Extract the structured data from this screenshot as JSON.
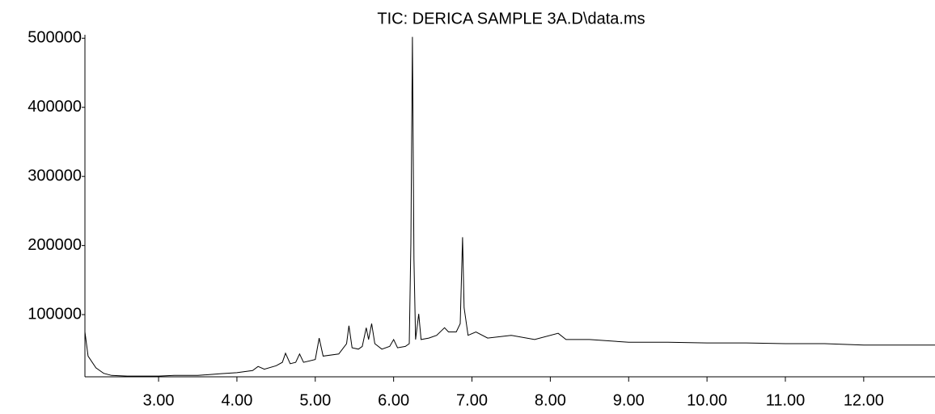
{
  "chart_data": {
    "type": "line",
    "title": "TIC: DERICA SAMPLE 3A.D\\data.ms",
    "x": [
      2.06,
      2.1,
      2.2,
      2.3,
      2.4,
      2.6,
      3.0,
      3.2,
      3.5,
      3.8,
      4.0,
      4.2,
      4.27,
      4.35,
      4.5,
      4.58,
      4.62,
      4.68,
      4.75,
      4.8,
      4.85,
      5.0,
      5.05,
      5.1,
      5.3,
      5.4,
      5.43,
      5.47,
      5.55,
      5.6,
      5.65,
      5.68,
      5.72,
      5.76,
      5.85,
      5.95,
      6.0,
      6.05,
      6.15,
      6.2,
      6.22,
      6.24,
      6.26,
      6.28,
      6.32,
      6.35,
      6.45,
      6.55,
      6.65,
      6.7,
      6.8,
      6.85,
      6.88,
      6.9,
      6.95,
      7.05,
      7.2,
      7.5,
      7.8,
      8.1,
      8.2,
      8.5,
      9.0,
      9.5,
      10.0,
      10.5,
      11.0,
      11.5,
      12.0,
      12.5,
      12.91
    ],
    "values": [
      75000,
      40000,
      23000,
      15000,
      12000,
      11000,
      11000,
      12000,
      12000,
      14600,
      16000,
      19000,
      25000,
      21000,
      26000,
      31000,
      44000,
      29000,
      31000,
      43000,
      31000,
      35000,
      66000,
      40000,
      43000,
      58000,
      84000,
      52000,
      50000,
      54000,
      81000,
      64000,
      87000,
      58000,
      50000,
      54000,
      64000,
      52000,
      54000,
      58000,
      204000,
      502000,
      180000,
      64000,
      101000,
      64000,
      66000,
      70000,
      81000,
      75000,
      75000,
      87000,
      212000,
      110000,
      70000,
      75000,
      66000,
      70000,
      64000,
      73000,
      64000,
      64000,
      60000,
      60000,
      59000,
      59000,
      58000,
      58000,
      56000,
      56000,
      56000
    ],
    "color": "#000000",
    "xlim": [
      2.06,
      12.91
    ],
    "ylim": [
      10000,
      505000
    ],
    "xticks": [
      {
        "value": 3,
        "label": "3.00"
      },
      {
        "value": 4,
        "label": "4.00"
      },
      {
        "value": 5,
        "label": "5.00"
      },
      {
        "value": 6,
        "label": "6.00"
      },
      {
        "value": 7,
        "label": "7.00"
      },
      {
        "value": 8,
        "label": "8.00"
      },
      {
        "value": 9,
        "label": "9.00"
      },
      {
        "value": 10,
        "label": "10.00"
      },
      {
        "value": 11,
        "label": "11.00"
      },
      {
        "value": 12,
        "label": "12.00"
      }
    ],
    "yticks": [
      100000,
      200000,
      300000,
      400000,
      500000
    ]
  }
}
